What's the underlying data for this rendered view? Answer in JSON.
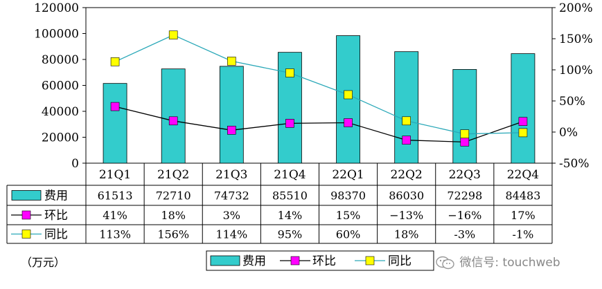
{
  "chart_data": {
    "type": "bar",
    "categories": [
      "21Q1",
      "21Q2",
      "21Q3",
      "21Q4",
      "22Q1",
      "22Q2",
      "22Q3",
      "22Q4"
    ],
    "unit_label": "（万元）",
    "y_left": {
      "ticks": [
        0,
        20000,
        40000,
        60000,
        80000,
        100000,
        120000
      ],
      "range": [
        0,
        120000
      ]
    },
    "y_right": {
      "ticks": [
        "-50%",
        "0%",
        "50%",
        "100%",
        "150%",
        "200%"
      ],
      "range": [
        -50,
        200
      ]
    },
    "series": [
      {
        "name": "费用",
        "kind": "bar",
        "axis": "left",
        "color": "#33CCCC",
        "values": [
          61513,
          72710,
          74732,
          85510,
          98370,
          86030,
          72298,
          84483
        ],
        "table_labels": [
          "61513",
          "72710",
          "74732",
          "85510",
          "98370",
          "86030",
          "72298",
          "84483"
        ]
      },
      {
        "name": "环比",
        "kind": "line",
        "axis": "right",
        "color": "#FF00FF",
        "line_color": "#000000",
        "values": [
          41,
          18,
          3,
          14,
          15,
          -13,
          -16,
          17
        ],
        "table_labels": [
          "41%",
          "18%",
          "3%",
          "14%",
          "15%",
          "−13%",
          "−16%",
          "17%"
        ]
      },
      {
        "name": "同比",
        "kind": "line",
        "axis": "right",
        "color": "#FFFF00",
        "line_color": "#2AA8B8",
        "values": [
          113,
          156,
          114,
          95,
          60,
          18,
          -3,
          -1
        ],
        "table_labels": [
          "113%",
          "156%",
          "114%",
          "95%",
          "60%",
          "18%",
          "-3%",
          "-1%"
        ]
      }
    ],
    "legend": {
      "position": "bottom",
      "items": [
        "费用",
        "环比",
        "同比"
      ]
    },
    "grid": false
  },
  "watermark": {
    "text": "微信号: touchweb",
    "icon": "wechat-icon"
  }
}
